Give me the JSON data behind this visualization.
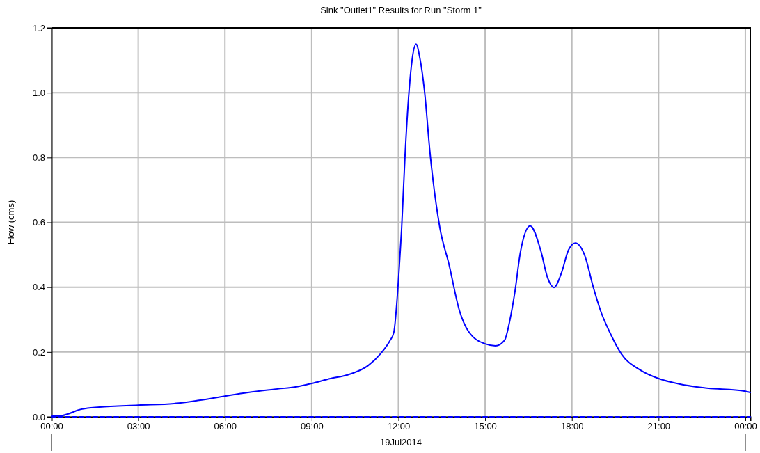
{
  "chart_data": {
    "type": "line",
    "title": "Sink \"Outlet1\" Results for Run \"Storm 1\"",
    "xlabel": "19Jul2014",
    "ylabel": "Flow (cms)",
    "xlim": [
      0,
      24.17
    ],
    "xticks": [
      {
        "value": 0,
        "label": "00:00"
      },
      {
        "value": 3,
        "label": "03:00"
      },
      {
        "value": 6,
        "label": "06:00"
      },
      {
        "value": 9,
        "label": "09:00"
      },
      {
        "value": 12,
        "label": "12:00"
      },
      {
        "value": 15,
        "label": "15:00"
      },
      {
        "value": 18,
        "label": "18:00"
      },
      {
        "value": 21,
        "label": "21:00"
      },
      {
        "value": 24,
        "label": "00:00"
      }
    ],
    "ylim": [
      0,
      1.2
    ],
    "yticks": [
      {
        "value": 0,
        "label": "0.0"
      },
      {
        "value": 0.2,
        "label": "0.2"
      },
      {
        "value": 0.4,
        "label": "0.4"
      },
      {
        "value": 0.6,
        "label": "0.6"
      },
      {
        "value": 0.8,
        "label": "0.8"
      },
      {
        "value": 1,
        "label": "1.0"
      },
      {
        "value": 1.2,
        "label": "1.2"
      }
    ],
    "grid": true,
    "series": [
      {
        "color": "#0000ff",
        "line_style": "solid",
        "x": [
          0,
          0.36,
          1.06,
          1.66,
          3,
          4.24,
          5.1,
          6,
          6.8,
          7.7,
          8.55,
          9,
          9.65,
          10.26,
          10.95,
          11.46,
          11.7,
          11.84,
          12,
          12.11,
          12.23,
          12.37,
          12.47,
          12.61,
          12.74,
          12.9,
          13.1,
          13.43,
          13.75,
          14.11,
          14.42,
          15,
          15.36,
          15.67,
          15.86,
          16.03,
          16.22,
          16.56,
          16.92,
          17.16,
          17.38,
          17.64,
          17.88,
          18.12,
          18.44,
          18.75,
          18.99,
          19.33,
          19.72,
          20.37,
          21,
          21.74,
          22.53,
          24,
          24.17
        ],
        "values": [
          0.002,
          0.004,
          0.024,
          0.03,
          0.036,
          0.041,
          0.051,
          0.064,
          0.075,
          0.085,
          0.094,
          0.103,
          0.118,
          0.13,
          0.158,
          0.203,
          0.234,
          0.26,
          0.42,
          0.579,
          0.808,
          1.007,
          1.099,
          1.15,
          1.108,
          1.007,
          0.808,
          0.585,
          0.47,
          0.328,
          0.264,
          0.225,
          0.219,
          0.236,
          0.3,
          0.386,
          0.508,
          0.589,
          0.514,
          0.429,
          0.399,
          0.444,
          0.514,
          0.536,
          0.499,
          0.397,
          0.328,
          0.257,
          0.193,
          0.144,
          0.118,
          0.101,
          0.09,
          0.079,
          0.075
        ]
      },
      {
        "color": "#0000ff",
        "line_style": "dashed",
        "x": [
          0,
          24.17
        ],
        "values": [
          0,
          0
        ]
      }
    ]
  }
}
